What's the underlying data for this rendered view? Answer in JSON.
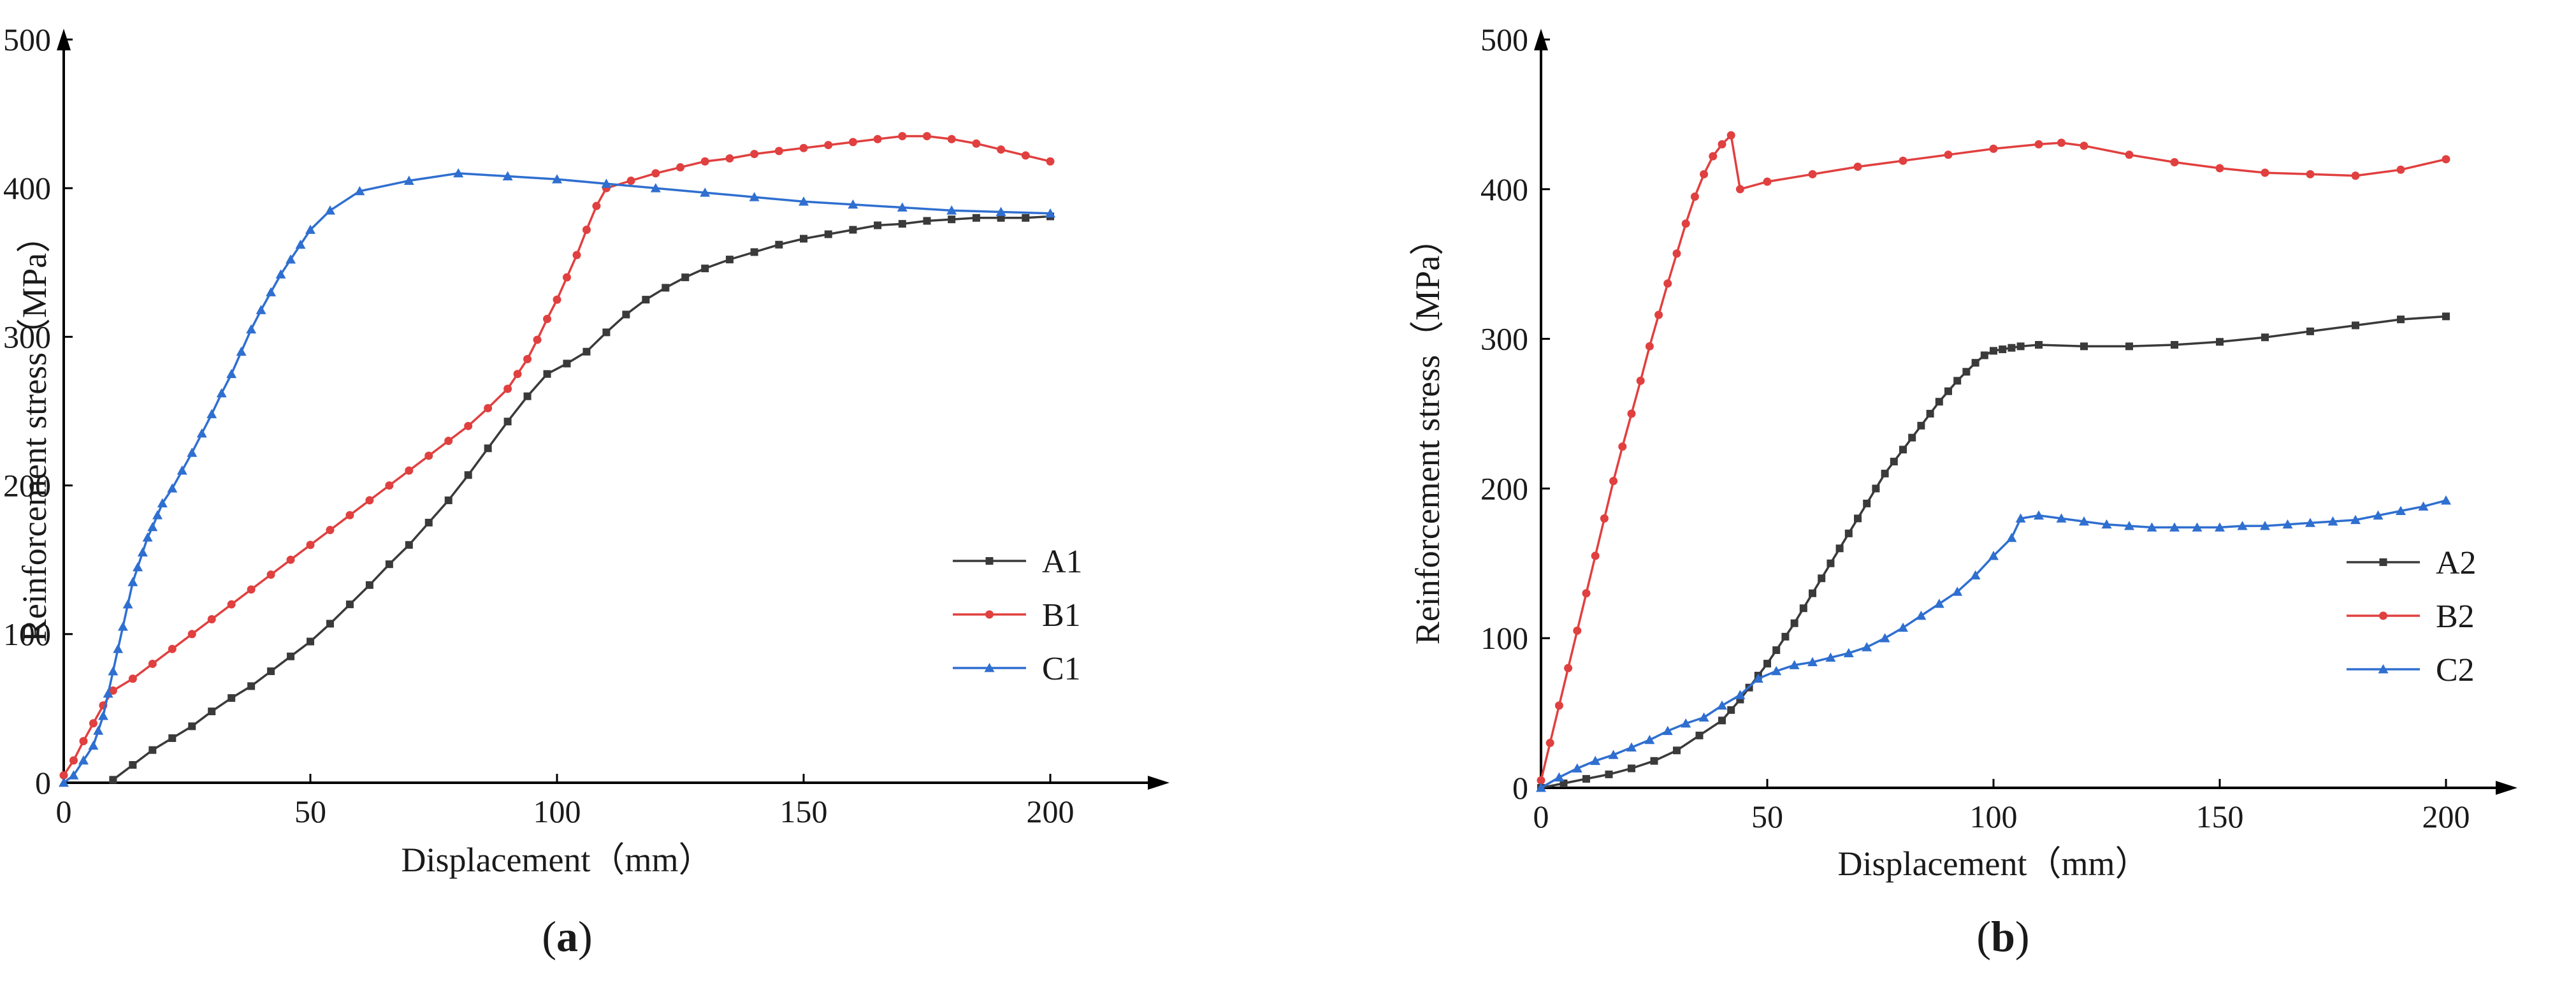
{
  "colors": {
    "A": "#3a3a3a",
    "B": "#e0403f",
    "C": "#2f6fd0",
    "axis": "#000000"
  },
  "chart_data": [
    {
      "panel_label": "(a)",
      "panel_letter": "a",
      "type": "line",
      "xlabel": "Displacement（mm）",
      "ylabel": "Reinforcement stress（MPa）",
      "xlim": [
        0,
        225
      ],
      "ylim": [
        0,
        520
      ],
      "xticks": [
        0,
        50,
        100,
        150,
        200
      ],
      "yticks": [
        0,
        100,
        200,
        300,
        400,
        500
      ],
      "legend_position": "right-middle",
      "series": [
        {
          "name": "A1",
          "color": "#3a3a3a",
          "marker": "square",
          "x": [
            10,
            14,
            18,
            22,
            26,
            30,
            34,
            38,
            42,
            46,
            50,
            54,
            58,
            62,
            66,
            70,
            74,
            78,
            82,
            86,
            90,
            94,
            98,
            102,
            106,
            110,
            114,
            118,
            122,
            126,
            130,
            135,
            140,
            145,
            150,
            155,
            160,
            165,
            170,
            175,
            180,
            185,
            190,
            195,
            200
          ],
          "y": [
            2,
            12,
            22,
            30,
            38,
            48,
            57,
            65,
            75,
            85,
            95,
            107,
            120,
            133,
            147,
            160,
            175,
            190,
            207,
            225,
            243,
            260,
            275,
            282,
            290,
            303,
            315,
            325,
            333,
            340,
            346,
            352,
            357,
            362,
            366,
            369,
            372,
            375,
            376,
            378,
            379,
            380,
            380,
            380,
            381
          ]
        },
        {
          "name": "B1",
          "color": "#e0403f",
          "marker": "circle",
          "x": [
            0,
            2,
            4,
            6,
            8,
            10,
            14,
            18,
            22,
            26,
            30,
            34,
            38,
            42,
            46,
            50,
            54,
            58,
            62,
            66,
            70,
            74,
            78,
            82,
            86,
            90,
            92,
            94,
            96,
            98,
            100,
            102,
            104,
            106,
            108,
            110,
            115,
            120,
            125,
            130,
            135,
            140,
            145,
            150,
            155,
            160,
            165,
            170,
            175,
            180,
            185,
            190,
            195,
            200
          ],
          "y": [
            5,
            15,
            28,
            40,
            52,
            62,
            70,
            80,
            90,
            100,
            110,
            120,
            130,
            140,
            150,
            160,
            170,
            180,
            190,
            200,
            210,
            220,
            230,
            240,
            252,
            265,
            275,
            285,
            298,
            312,
            325,
            340,
            355,
            372,
            388,
            400,
            405,
            410,
            414,
            418,
            420,
            423,
            425,
            427,
            429,
            431,
            433,
            435,
            435,
            433,
            430,
            426,
            422,
            418
          ]
        },
        {
          "name": "C1",
          "color": "#2f6fd0",
          "marker": "triangle",
          "x": [
            0,
            2,
            4,
            6,
            7,
            8,
            9,
            10,
            11,
            12,
            13,
            14,
            15,
            16,
            17,
            18,
            19,
            20,
            22,
            24,
            26,
            28,
            30,
            32,
            34,
            36,
            38,
            40,
            42,
            44,
            46,
            48,
            50,
            54,
            60,
            70,
            80,
            90,
            100,
            110,
            120,
            130,
            140,
            150,
            160,
            170,
            180,
            190,
            200
          ],
          "y": [
            0,
            5,
            15,
            25,
            35,
            45,
            60,
            75,
            90,
            105,
            120,
            135,
            145,
            155,
            165,
            172,
            180,
            188,
            198,
            210,
            222,
            235,
            248,
            262,
            275,
            290,
            305,
            318,
            330,
            342,
            352,
            362,
            372,
            385,
            398,
            405,
            410,
            408,
            406,
            403,
            400,
            397,
            394,
            391,
            389,
            387,
            385,
            384,
            383
          ]
        }
      ]
    },
    {
      "panel_label": "(b)",
      "panel_letter": "b",
      "type": "line",
      "xlabel": "Displacement（mm）",
      "ylabel": "Reinforcement stress（MPa）",
      "xlim": [
        0,
        225
      ],
      "ylim": [
        0,
        520
      ],
      "xticks": [
        0,
        50,
        100,
        150,
        200
      ],
      "yticks": [
        0,
        100,
        200,
        300,
        400,
        500
      ],
      "legend_position": "right-middle",
      "series": [
        {
          "name": "A2",
          "color": "#3a3a3a",
          "marker": "square",
          "x": [
            0,
            5,
            10,
            15,
            20,
            25,
            30,
            35,
            40,
            42,
            44,
            46,
            48,
            50,
            52,
            54,
            56,
            58,
            60,
            62,
            64,
            66,
            68,
            70,
            72,
            74,
            76,
            78,
            80,
            82,
            84,
            86,
            88,
            90,
            92,
            94,
            96,
            98,
            100,
            102,
            104,
            106,
            110,
            120,
            130,
            140,
            150,
            160,
            170,
            180,
            190,
            200
          ],
          "y": [
            0,
            3,
            6,
            9,
            13,
            18,
            25,
            35,
            45,
            52,
            59,
            67,
            75,
            83,
            92,
            101,
            110,
            120,
            130,
            140,
            150,
            160,
            170,
            180,
            190,
            200,
            210,
            218,
            226,
            234,
            242,
            250,
            258,
            265,
            272,
            278,
            284,
            289,
            292,
            293,
            294,
            295,
            296,
            295,
            295,
            296,
            298,
            301,
            305,
            309,
            313,
            315
          ]
        },
        {
          "name": "B2",
          "color": "#e0403f",
          "marker": "circle",
          "x": [
            0,
            2,
            4,
            6,
            8,
            10,
            12,
            14,
            16,
            18,
            20,
            22,
            24,
            26,
            28,
            30,
            32,
            34,
            36,
            38,
            40,
            42,
            44,
            50,
            60,
            70,
            80,
            90,
            100,
            110,
            115,
            120,
            130,
            140,
            150,
            160,
            170,
            180,
            190,
            200
          ],
          "y": [
            5,
            30,
            55,
            80,
            105,
            130,
            155,
            180,
            205,
            228,
            250,
            272,
            295,
            316,
            337,
            357,
            377,
            395,
            410,
            422,
            430,
            436,
            400,
            405,
            410,
            415,
            419,
            423,
            427,
            430,
            431,
            429,
            423,
            418,
            414,
            411,
            410,
            409,
            413,
            420
          ]
        },
        {
          "name": "C2",
          "color": "#2f6fd0",
          "marker": "triangle",
          "x": [
            0,
            4,
            8,
            12,
            16,
            20,
            24,
            28,
            32,
            36,
            40,
            44,
            48,
            52,
            56,
            60,
            64,
            68,
            72,
            76,
            80,
            84,
            88,
            92,
            96,
            100,
            104,
            106,
            110,
            115,
            120,
            125,
            130,
            135,
            140,
            145,
            150,
            155,
            160,
            165,
            170,
            175,
            180,
            185,
            190,
            195,
            200
          ],
          "y": [
            0,
            7,
            13,
            18,
            22,
            27,
            32,
            38,
            43,
            47,
            55,
            62,
            73,
            78,
            82,
            84,
            87,
            90,
            94,
            100,
            107,
            115,
            123,
            131,
            142,
            155,
            167,
            180,
            182,
            180,
            178,
            176,
            175,
            174,
            174,
            174,
            174,
            175,
            175,
            176,
            177,
            178,
            179,
            182,
            185,
            188,
            192
          ]
        }
      ]
    }
  ]
}
